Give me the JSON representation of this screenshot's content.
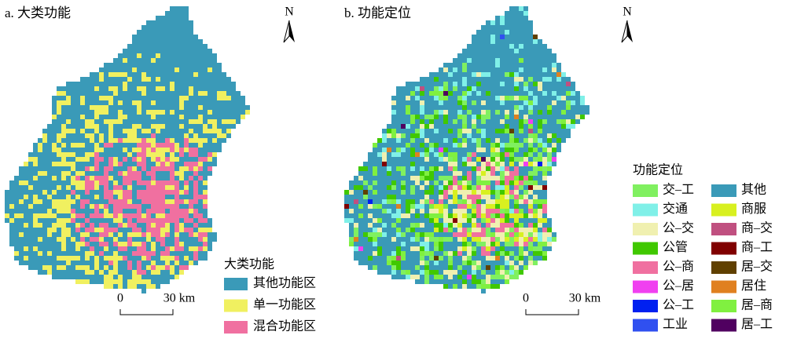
{
  "panels": [
    {
      "title": "a. 大类功能",
      "north": "N",
      "legend": {
        "title": "大类功能",
        "items": [
          {
            "label": "其他功能区",
            "color": "#3a9ab8"
          },
          {
            "label": "单一功能区",
            "color": "#f0f060"
          },
          {
            "label": "混合功能区",
            "color": "#f070a0"
          }
        ]
      },
      "scale": {
        "start": "0",
        "end": "30 km"
      }
    },
    {
      "title": "b. 功能定位",
      "north": "N",
      "legend": {
        "title": "功能定位",
        "items": [
          {
            "label": "交–工",
            "color": "#80f060"
          },
          {
            "label": "交通",
            "color": "#80f0e8"
          },
          {
            "label": "公–交",
            "color": "#f0f0b0"
          },
          {
            "label": "公管",
            "color": "#40c800"
          },
          {
            "label": "公–商",
            "color": "#f070a0"
          },
          {
            "label": "公–居",
            "color": "#f040f0"
          },
          {
            "label": "公–工",
            "color": "#0020f0"
          },
          {
            "label": "工业",
            "color": "#3050f0"
          },
          {
            "label": "其他",
            "color": "#3a9ab8"
          },
          {
            "label": "商服",
            "color": "#d8f020"
          },
          {
            "label": "商–交",
            "color": "#c05080"
          },
          {
            "label": "商–工",
            "color": "#800000"
          },
          {
            "label": "居–交",
            "color": "#604000"
          },
          {
            "label": "居住",
            "color": "#e08020"
          },
          {
            "label": "居–商",
            "color": "#80f040"
          },
          {
            "label": "居–工",
            "color": "#500060"
          }
        ]
      },
      "scale": {
        "start": "0",
        "end": "30 km"
      }
    }
  ]
}
